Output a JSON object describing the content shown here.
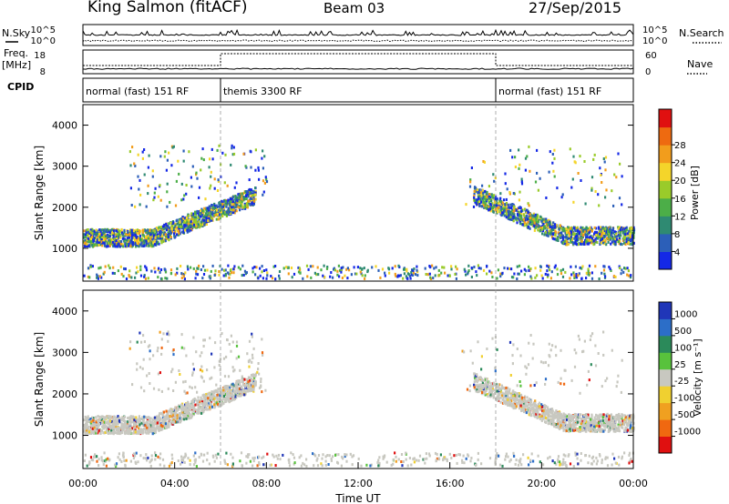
{
  "header": {
    "title": "King Salmon (fitACF)",
    "beam": "Beam 03",
    "date": "27/Sep/2015"
  },
  "status_panels": {
    "nsky_label": "N.Sky",
    "nsearch_label": "N.Search",
    "freq_label": "Freq.",
    "freq_unit": "[MHz]",
    "nave_label": "Nave",
    "cpid_label": "CPID",
    "noise_ticks": [
      "10^5",
      "10^0"
    ],
    "freq_ticks": [
      "18",
      "8"
    ],
    "nave_ticks": [
      "60",
      "0"
    ],
    "cpid_segments": [
      {
        "label": "normal (fast) 151 RF",
        "start_hour": 0,
        "end_hour": 6
      },
      {
        "label": "themis 3300 RF",
        "start_hour": 6,
        "end_hour": 18
      },
      {
        "label": "normal (fast) 151 RF",
        "start_hour": 18,
        "end_hour": 24
      }
    ]
  },
  "chart_data": [
    {
      "type": "heatmap",
      "parameter": "power",
      "ylabel": "Slant Range [km]",
      "xlabel": "",
      "ylim": [
        200,
        4500
      ],
      "xlim_hours": [
        0,
        24
      ],
      "y_ticks": [
        1000,
        2000,
        3000,
        4000
      ],
      "colorbar": {
        "label": "Power [dB]",
        "tick_labels": [
          "4",
          "8",
          "12",
          "16",
          "20",
          "24",
          "28"
        ],
        "colors": [
          "#1428e6",
          "#2c5fb8",
          "#2f8a72",
          "#4cae48",
          "#9acb2a",
          "#f4d52a",
          "#f29d1c",
          "#ee6a10",
          "#e01010"
        ]
      },
      "features": [
        {
          "feature": "main backscatter band",
          "hours": [
            0,
            7.5
          ],
          "range_km": [
            1100,
            2300
          ],
          "typical_db": 16
        },
        {
          "feature": "main backscatter band",
          "hours": [
            17,
            24
          ],
          "range_km": [
            1100,
            2300
          ],
          "typical_db": 12
        },
        {
          "feature": "near-range ground scatter",
          "hours": [
            0,
            24
          ],
          "range_km": [
            250,
            550
          ],
          "typical_db": 8
        }
      ]
    },
    {
      "type": "heatmap",
      "parameter": "velocity",
      "ylabel": "Slant Range [km]",
      "xlabel": "Time UT",
      "ylim": [
        200,
        4500
      ],
      "xlim_hours": [
        0,
        24
      ],
      "y_ticks": [
        1000,
        2000,
        3000,
        4000
      ],
      "x_tick_labels": [
        "00:00",
        "04:00",
        "08:00",
        "12:00",
        "16:00",
        "20:00",
        "00:00"
      ],
      "colorbar": {
        "label": "Velocity [m s⁻¹]",
        "tick_labels": [
          "1000",
          "500",
          "100",
          "25",
          "-25",
          "-100",
          "-500",
          "-1000"
        ],
        "colors": [
          "#2036b8",
          "#2c6ec8",
          "#2b8a5a",
          "#58c23c",
          "#c8c8c0",
          "#f0d030",
          "#f0a020",
          "#f06810",
          "#e01010"
        ]
      },
      "features": [
        {
          "feature": "ground scatter (grey)",
          "hours": [
            0,
            7.5
          ],
          "range_km": [
            1100,
            2300
          ]
        },
        {
          "feature": "ground scatter (grey)",
          "hours": [
            17,
            24
          ],
          "range_km": [
            1100,
            2300
          ]
        }
      ]
    }
  ]
}
